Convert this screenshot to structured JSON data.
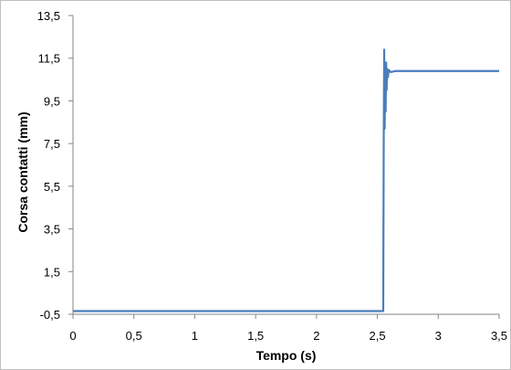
{
  "chart_data": {
    "type": "line",
    "title": "",
    "xlabel": "Tempo (s)",
    "ylabel": "Corsa contatti (mm)",
    "xlim": [
      0,
      3.5
    ],
    "ylim": [
      -0.5,
      13.5
    ],
    "x_tick_values": [
      0,
      0.5,
      1,
      1.5,
      2,
      2.5,
      3,
      3.5
    ],
    "x_tick_labels": [
      "0",
      "0,5",
      "1",
      "1,5",
      "2",
      "2,5",
      "3",
      "3,5"
    ],
    "y_tick_values": [
      -0.5,
      1.5,
      3.5,
      5.5,
      7.5,
      9.5,
      11.5,
      13.5
    ],
    "y_tick_labels": [
      "-0,5",
      "1,5",
      "3,5",
      "5,5",
      "7,5",
      "9,5",
      "11,5",
      "13,5"
    ],
    "grid": false,
    "legend": "none",
    "series": [
      {
        "color": "#4a7ebb",
        "x": [
          0,
          2.4,
          2.548,
          2.552,
          2.556,
          2.56,
          2.564,
          2.568,
          2.572,
          2.576,
          2.58,
          2.586,
          2.594,
          2.61,
          2.65,
          2.8,
          3.0,
          3.3,
          3.5
        ],
        "y": [
          -0.35,
          -0.35,
          -0.35,
          7.5,
          11.9,
          8.2,
          11.2,
          9.0,
          11.3,
          10.0,
          11.0,
          10.6,
          10.95,
          10.85,
          10.9,
          10.9,
          10.9,
          10.9,
          10.9
        ]
      }
    ]
  }
}
